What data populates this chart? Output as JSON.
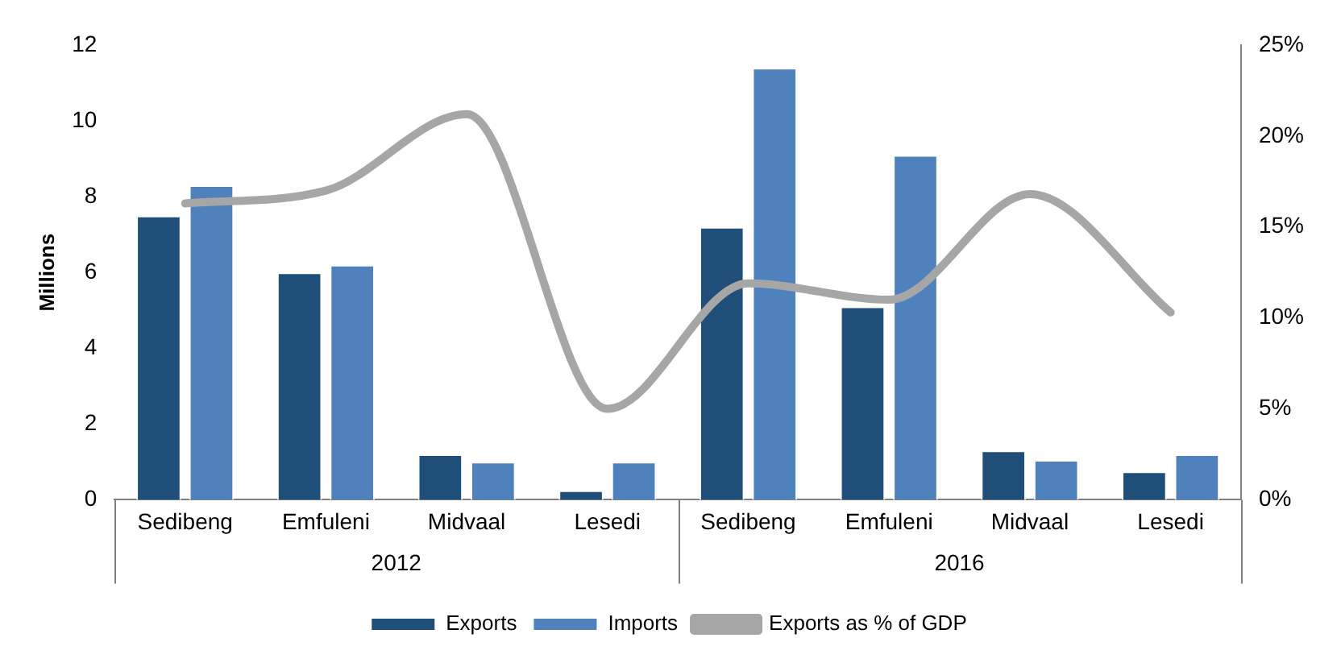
{
  "chart_data": {
    "type": "bar",
    "ylabel": "Millions",
    "categories": [
      "Sedibeng",
      "Emfuleni",
      "Midvaal",
      "Lesedi",
      "Sedibeng",
      "Emfuleni",
      "Midvaal",
      "Lesedi"
    ],
    "series": [
      {
        "name": "Exports",
        "color": "#1f4e79",
        "values": [
          7.5,
          6.0,
          1.2,
          0.25,
          7.2,
          5.1,
          1.3,
          0.75
        ]
      },
      {
        "name": "Imports",
        "color": "#4f81bd",
        "values": [
          8.3,
          6.2,
          1.0,
          1.0,
          11.4,
          9.1,
          1.05,
          1.2
        ]
      },
      {
        "name": "Exports as % of GDP",
        "type": "line",
        "axis": "y2",
        "color": "#a6a6a6",
        "values": [
          16.3,
          17,
          21.2,
          5,
          11.9,
          11,
          16.8,
          10.3
        ]
      }
    ],
    "ylim": [
      0,
      12
    ],
    "yticks": [
      0,
      2,
      4,
      6,
      8,
      10,
      12
    ],
    "y2lim": [
      0,
      25
    ],
    "y2ticks": [
      {
        "value": 0,
        "label": "0%"
      },
      {
        "value": 5,
        "label": "5%"
      },
      {
        "value": 10,
        "label": "10%"
      },
      {
        "value": 15,
        "label": "15%"
      },
      {
        "value": 20,
        "label": "20%"
      },
      {
        "value": 25,
        "label": "25%"
      }
    ],
    "annotations": [
      "2012",
      "2016"
    ],
    "legend": "bottom",
    "grid": false,
    "marker": "none"
  }
}
